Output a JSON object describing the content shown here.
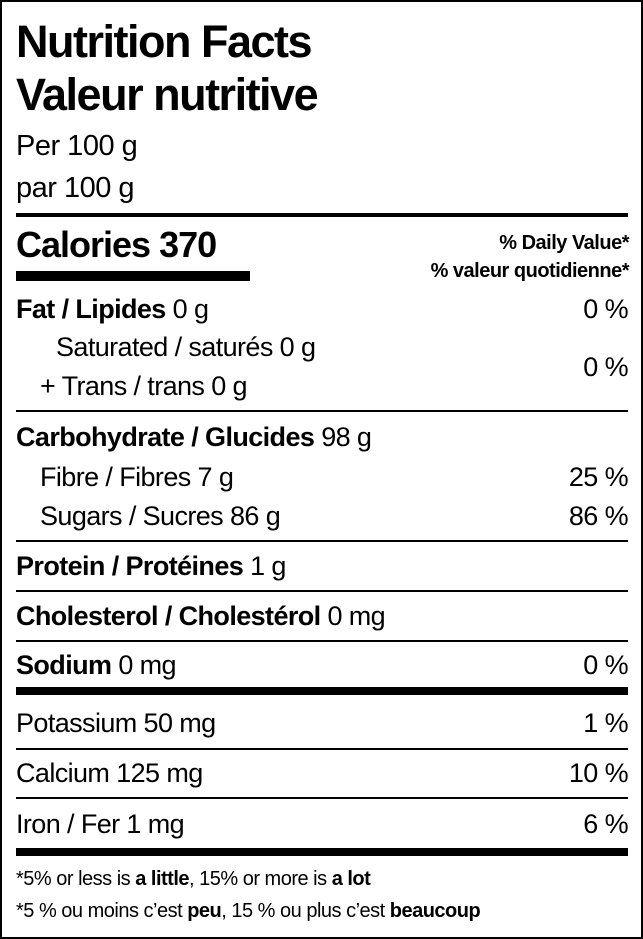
{
  "title_en": "Nutrition Facts",
  "title_fr": "Valeur nutritive",
  "serving_en": "Per 100 g",
  "serving_fr": "par 100 g",
  "calories": {
    "label": "Calories",
    "value": "370"
  },
  "dv_header_en": "% Daily Value*",
  "dv_header_fr": "% valeur quotidienne*",
  "fat": {
    "label": "Fat / Lipides",
    "amount": "0 g",
    "dv": "0 %"
  },
  "saturated": {
    "label": "Saturated / saturés 0 g"
  },
  "trans": {
    "label": "+ Trans / trans 0 g"
  },
  "sat_trans_dv": "0 %",
  "carb": {
    "label": "Carbohydrate / Glucides",
    "amount": "98 g"
  },
  "fibre": {
    "label": "Fibre / Fibres 7 g",
    "dv": "25 %"
  },
  "sugars": {
    "label": "Sugars / Sucres 86 g",
    "dv": "86 %"
  },
  "protein": {
    "label": "Protein / Protéines",
    "amount": "1 g"
  },
  "cholesterol": {
    "label": "Cholesterol / Cholestérol",
    "amount": "0 mg"
  },
  "sodium": {
    "label": "Sodium",
    "amount": "0 mg",
    "dv": "0 %"
  },
  "potassium": {
    "label": "Potassium 50 mg",
    "dv": "1 %"
  },
  "calcium": {
    "label": "Calcium 125 mg",
    "dv": "10 %"
  },
  "iron": {
    "label": "Iron / Fer 1 mg",
    "dv": "6 %"
  },
  "footnote_en": {
    "a": "*5% or less is ",
    "b": "a little",
    "c": ", 15% or more is ",
    "d": "a lot"
  },
  "footnote_fr": {
    "a": "*5 % ou moins c’est ",
    "b": "peu",
    "c": ", 15 % ou plus c’est ",
    "d": "beaucoup"
  }
}
